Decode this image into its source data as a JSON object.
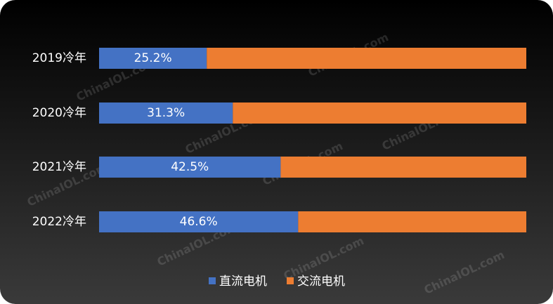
{
  "chart_data": {
    "type": "stacked-bar-horizontal",
    "categories": [
      "2019冷年",
      "2020冷年",
      "2021冷年",
      "2022冷年"
    ],
    "series": [
      {
        "name": "直流电机",
        "color": "#4472c4",
        "values": [
          25.2,
          31.3,
          42.5,
          46.6
        ],
        "value_labels": [
          "25.2%",
          "31.3%",
          "42.5%",
          "46.6%"
        ]
      },
      {
        "name": "交流电机",
        "color": "#ed7d31",
        "values": [
          74.8,
          68.7,
          57.5,
          53.4
        ]
      }
    ],
    "xlim": [
      0,
      100
    ],
    "legend": "bottom",
    "watermark": "ChinaIOL.com"
  }
}
